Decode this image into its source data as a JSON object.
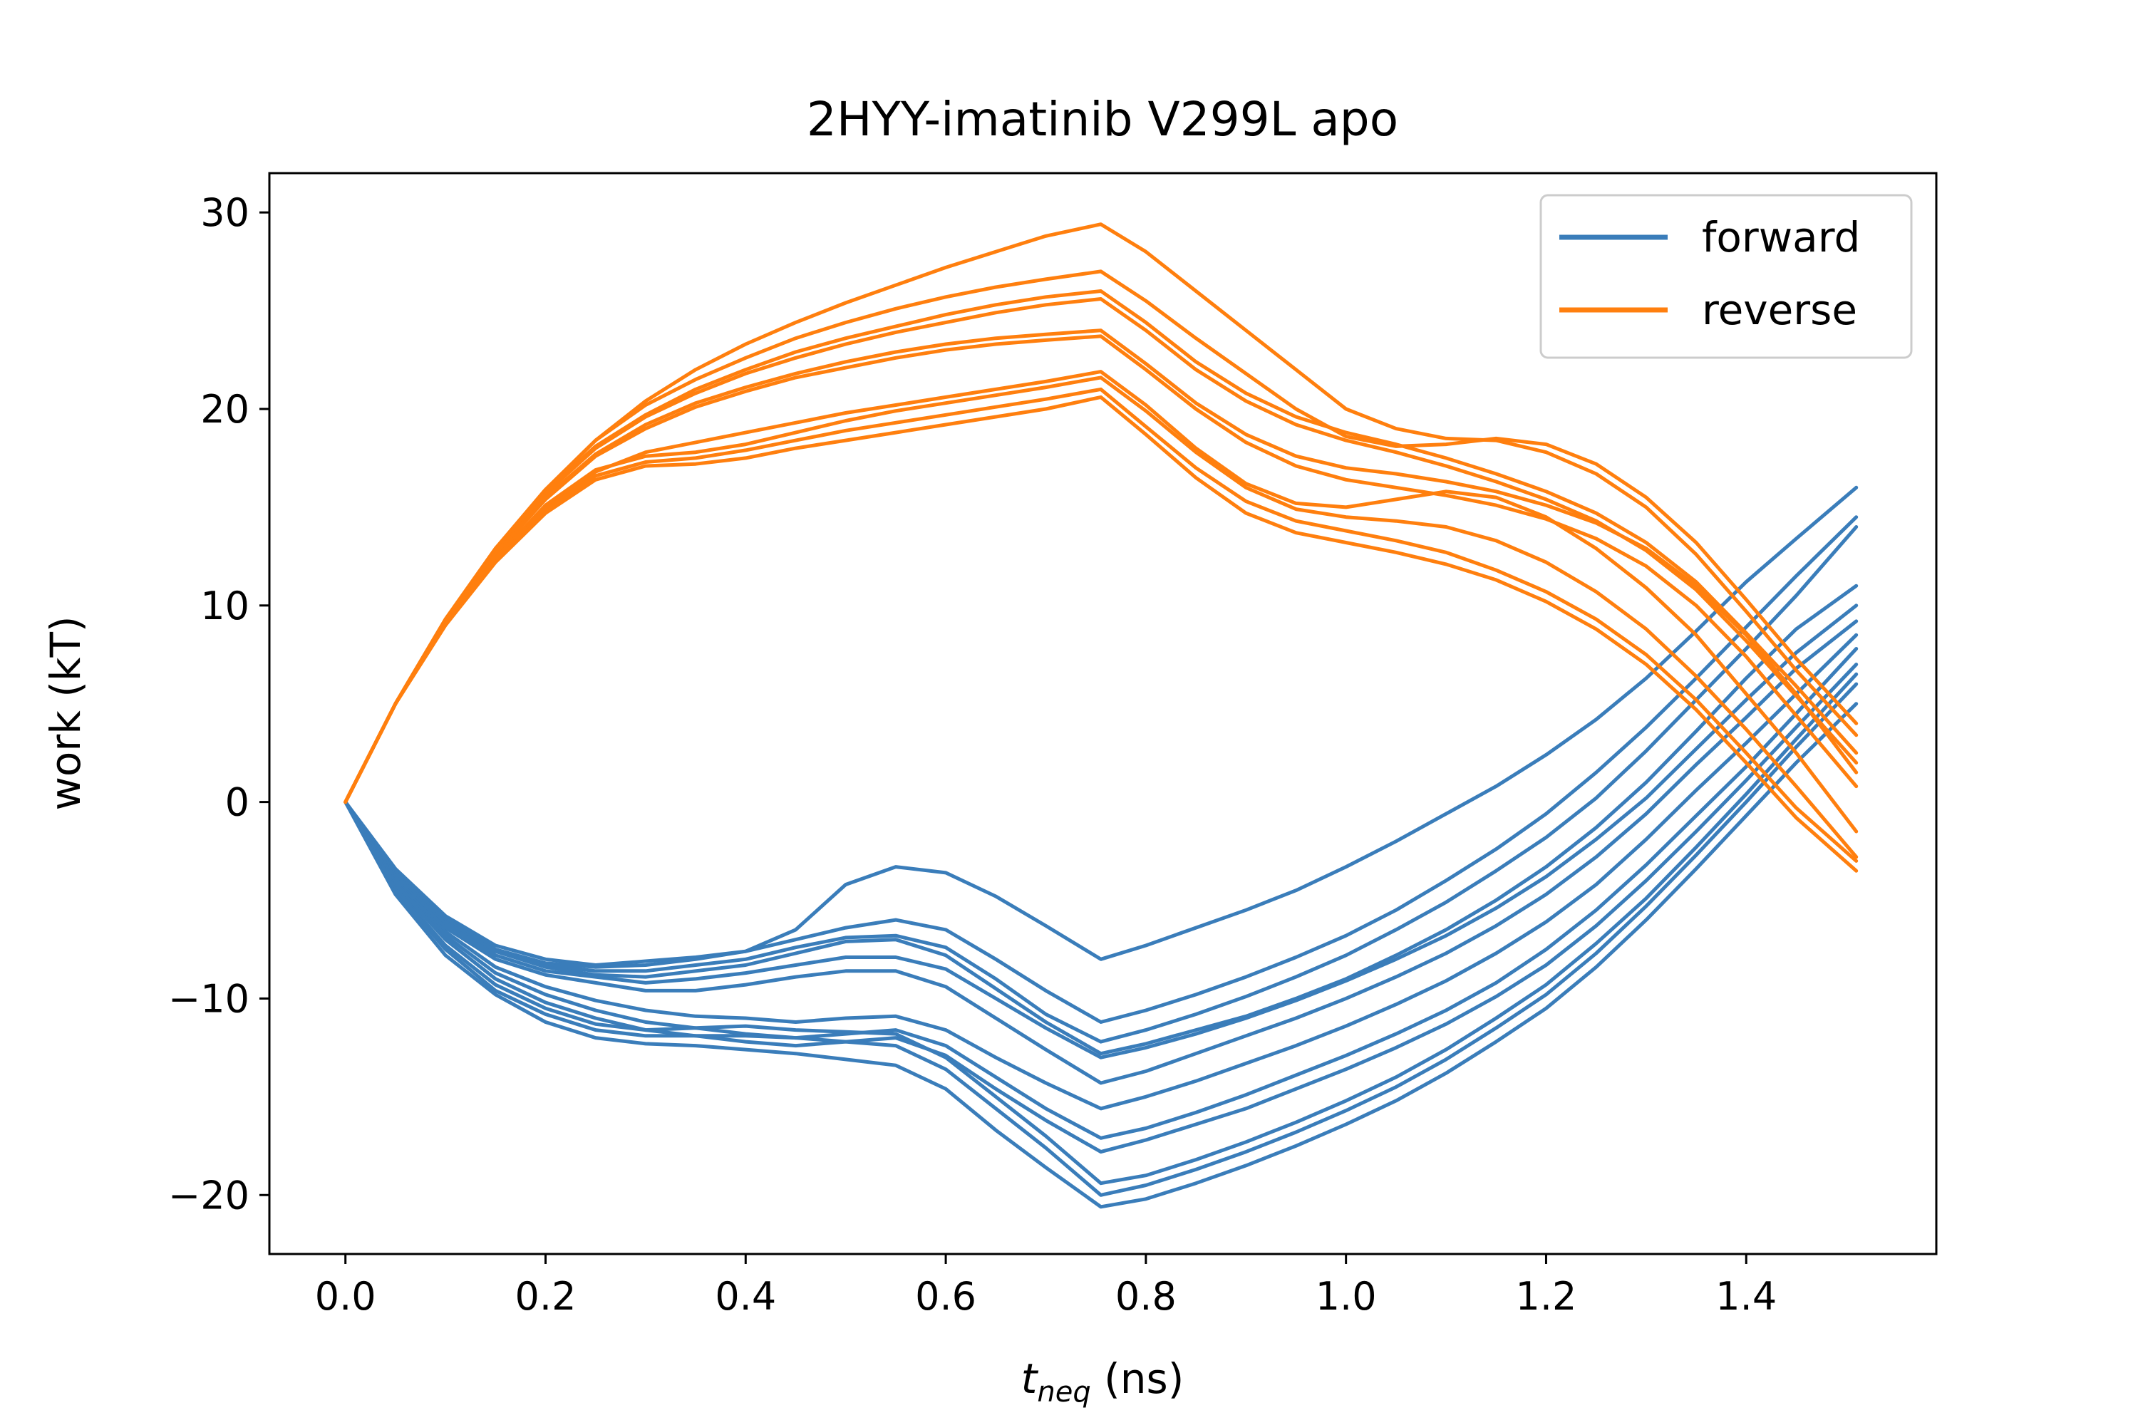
{
  "chart_data": {
    "type": "line",
    "title": "2HYY-imatinib V299L apo",
    "xlabel": {
      "base": "t",
      "subscript": "neq",
      "suffix": " (ns)"
    },
    "ylabel": "work (kT)",
    "xlim": [
      -0.076,
      1.59
    ],
    "ylim": [
      -23,
      32
    ],
    "xticks": [
      "0.0",
      "0.2",
      "0.4",
      "0.6",
      "0.8",
      "1.0",
      "1.2",
      "1.4"
    ],
    "yticks": [
      "−20",
      "−10",
      "0",
      "10",
      "20",
      "30"
    ],
    "xtick_values": [
      0,
      0.2,
      0.4,
      0.6,
      0.8,
      1.0,
      1.2,
      1.4
    ],
    "ytick_values": [
      -20,
      -10,
      0,
      10,
      20,
      30
    ],
    "grid": false,
    "legend": {
      "position": "top-right",
      "entries": [
        "forward",
        "reverse"
      ]
    },
    "colors": {
      "forward": "#3a7dba",
      "reverse": "#ff7f0e"
    },
    "x": [
      0,
      0.05,
      0.1,
      0.15,
      0.2,
      0.25,
      0.3,
      0.35,
      0.4,
      0.45,
      0.5,
      0.55,
      0.6,
      0.65,
      0.7,
      0.755,
      0.8,
      0.85,
      0.9,
      0.95,
      1.0,
      1.05,
      1.1,
      1.15,
      1.2,
      1.25,
      1.3,
      1.35,
      1.4,
      1.45,
      1.51
    ],
    "series": [
      {
        "name": "forward",
        "values": [
          0,
          -3.4,
          -5.8,
          -7.3,
          -8.0,
          -8.3,
          -8.1,
          -7.9,
          -7.6,
          -6.5,
          -4.2,
          -3.3,
          -3.6,
          -4.8,
          -6.3,
          -8.0,
          -7.3,
          -6.4,
          -5.5,
          -4.5,
          -3.3,
          -2.0,
          -0.6,
          0.8,
          2.4,
          4.2,
          6.3,
          8.7,
          11.2,
          13.4,
          16.0
        ]
      },
      {
        "name": "forward",
        "values": [
          0,
          -3.6,
          -6.0,
          -7.5,
          -8.2,
          -8.4,
          -8.3,
          -8.0,
          -7.6,
          -7.0,
          -6.4,
          -6.0,
          -6.5,
          -8.0,
          -9.6,
          -11.2,
          -10.6,
          -9.8,
          -8.9,
          -7.9,
          -6.8,
          -5.5,
          -4.0,
          -2.4,
          -0.6,
          1.5,
          3.8,
          6.3,
          8.9,
          11.5,
          14.5
        ]
      },
      {
        "name": "forward",
        "values": [
          0,
          -3.6,
          -6.0,
          -7.5,
          -8.3,
          -8.6,
          -8.6,
          -8.3,
          -8.0,
          -7.4,
          -6.9,
          -6.8,
          -7.4,
          -9.0,
          -10.8,
          -12.2,
          -11.6,
          -10.8,
          -9.9,
          -8.9,
          -7.8,
          -6.5,
          -5.1,
          -3.5,
          -1.8,
          0.2,
          2.6,
          5.2,
          7.8,
          10.5,
          14.0
        ]
      },
      {
        "name": "forward",
        "values": [
          0,
          -3.7,
          -6.1,
          -7.6,
          -8.4,
          -8.8,
          -8.9,
          -8.6,
          -8.3,
          -7.7,
          -7.1,
          -7.0,
          -7.8,
          -9.5,
          -11.2,
          -12.8,
          -12.3,
          -11.6,
          -10.9,
          -10.0,
          -9.0,
          -7.8,
          -6.5,
          -5.0,
          -3.3,
          -1.3,
          1.0,
          3.6,
          6.3,
          8.8,
          11.0
        ]
      },
      {
        "name": "forward",
        "values": [
          0,
          -3.8,
          -6.2,
          -7.8,
          -8.6,
          -8.9,
          -9.2,
          -9.0,
          -8.7,
          -8.3,
          -7.9,
          -7.9,
          -8.5,
          -10.0,
          -11.5,
          -13.0,
          -12.5,
          -11.8,
          -11.0,
          -10.1,
          -9.1,
          -8.0,
          -6.8,
          -5.4,
          -3.8,
          -1.9,
          0.2,
          2.7,
          5.2,
          7.6,
          10.0
        ]
      },
      {
        "name": "forward",
        "values": [
          0,
          -3.9,
          -6.4,
          -8.0,
          -8.8,
          -9.2,
          -9.6,
          -9.6,
          -9.3,
          -8.9,
          -8.6,
          -8.6,
          -9.4,
          -11.0,
          -12.6,
          -14.3,
          -13.7,
          -12.8,
          -11.9,
          -11.0,
          -10.0,
          -8.9,
          -7.7,
          -6.3,
          -4.7,
          -2.8,
          -0.6,
          1.9,
          4.3,
          6.8,
          9.2
        ]
      },
      {
        "name": "forward",
        "values": [
          0,
          -4.0,
          -6.6,
          -8.4,
          -9.4,
          -10.1,
          -10.6,
          -10.9,
          -11.0,
          -11.2,
          -11.0,
          -10.9,
          -11.6,
          -13.0,
          -14.3,
          -15.6,
          -15.0,
          -14.2,
          -13.3,
          -12.4,
          -11.4,
          -10.3,
          -9.1,
          -7.7,
          -6.1,
          -4.2,
          -1.9,
          0.6,
          3.0,
          5.5,
          8.5
        ]
      },
      {
        "name": "forward",
        "values": [
          0,
          -4.1,
          -6.8,
          -8.7,
          -9.8,
          -10.6,
          -11.2,
          -11.5,
          -11.8,
          -12.0,
          -11.8,
          -11.6,
          -12.4,
          -14.0,
          -15.6,
          -17.1,
          -16.6,
          -15.8,
          -14.9,
          -13.9,
          -12.9,
          -11.8,
          -10.6,
          -9.2,
          -7.5,
          -5.5,
          -3.2,
          -0.7,
          1.8,
          4.5,
          7.8
        ]
      },
      {
        "name": "forward",
        "values": [
          0,
          -4.2,
          -7.0,
          -9.0,
          -10.2,
          -11.0,
          -11.6,
          -11.9,
          -12.2,
          -12.4,
          -12.2,
          -12.0,
          -12.9,
          -14.6,
          -16.2,
          -17.8,
          -17.2,
          -16.4,
          -15.6,
          -14.6,
          -13.6,
          -12.5,
          -11.3,
          -9.9,
          -8.3,
          -6.3,
          -4.0,
          -1.5,
          1.1,
          3.8,
          7.0
        ]
      },
      {
        "name": "forward",
        "values": [
          0,
          -4.4,
          -7.3,
          -9.3,
          -10.5,
          -11.3,
          -11.6,
          -11.5,
          -11.4,
          -11.6,
          -11.7,
          -11.8,
          -13.0,
          -15.0,
          -17.0,
          -19.4,
          -19.0,
          -18.2,
          -17.3,
          -16.3,
          -15.2,
          -14.0,
          -12.6,
          -11.0,
          -9.3,
          -7.2,
          -4.9,
          -2.3,
          0.4,
          3.2,
          6.5
        ]
      },
      {
        "name": "forward",
        "values": [
          0,
          -4.5,
          -7.5,
          -9.6,
          -10.8,
          -11.6,
          -11.9,
          -11.9,
          -11.9,
          -12.0,
          -12.2,
          -12.4,
          -13.6,
          -15.6,
          -17.6,
          -20.0,
          -19.5,
          -18.7,
          -17.8,
          -16.8,
          -15.7,
          -14.5,
          -13.1,
          -11.5,
          -9.8,
          -7.7,
          -5.3,
          -2.7,
          0.0,
          2.8,
          6.0
        ]
      },
      {
        "name": "forward",
        "values": [
          0,
          -4.7,
          -7.8,
          -9.8,
          -11.2,
          -12.0,
          -12.3,
          -12.4,
          -12.6,
          -12.8,
          -13.1,
          -13.4,
          -14.6,
          -16.7,
          -18.6,
          -20.6,
          -20.2,
          -19.4,
          -18.5,
          -17.5,
          -16.4,
          -15.2,
          -13.8,
          -12.2,
          -10.5,
          -8.4,
          -6.0,
          -3.4,
          -0.7,
          2.0,
          5.0
        ]
      },
      {
        "name": "reverse",
        "values": [
          0,
          5.0,
          9.3,
          12.9,
          15.9,
          18.4,
          20.4,
          22.0,
          23.3,
          24.4,
          25.4,
          26.3,
          27.2,
          28.0,
          28.8,
          29.4,
          28.0,
          26.0,
          24.0,
          22.0,
          20.0,
          19.0,
          18.5,
          18.4,
          17.8,
          16.7,
          15.0,
          12.6,
          9.7,
          6.7,
          3.4
        ]
      },
      {
        "name": "reverse",
        "values": [
          0,
          5.0,
          9.3,
          12.9,
          15.9,
          18.4,
          20.2,
          21.5,
          22.6,
          23.6,
          24.4,
          25.1,
          25.7,
          26.2,
          26.6,
          27.0,
          25.5,
          23.6,
          21.8,
          20.0,
          18.6,
          18.1,
          18.2,
          18.5,
          18.2,
          17.2,
          15.5,
          13.2,
          10.3,
          7.3,
          4.0
        ]
      },
      {
        "name": "reverse",
        "values": [
          0,
          5.0,
          9.3,
          12.9,
          15.8,
          18.1,
          19.7,
          21.0,
          22.0,
          22.9,
          23.6,
          24.2,
          24.8,
          25.3,
          25.7,
          26.0,
          24.4,
          22.4,
          20.8,
          19.6,
          18.8,
          18.2,
          17.5,
          16.7,
          15.8,
          14.7,
          13.2,
          11.2,
          8.6,
          5.9,
          2.5
        ]
      },
      {
        "name": "reverse",
        "values": [
          0,
          5.0,
          9.3,
          12.8,
          15.7,
          18.0,
          19.6,
          20.8,
          21.8,
          22.6,
          23.3,
          23.9,
          24.4,
          24.9,
          25.3,
          25.6,
          24.0,
          22.0,
          20.4,
          19.2,
          18.4,
          17.8,
          17.1,
          16.3,
          15.4,
          14.3,
          12.8,
          10.8,
          8.2,
          5.4,
          2.0
        ]
      },
      {
        "name": "reverse",
        "values": [
          0,
          5.0,
          9.2,
          12.7,
          15.5,
          17.7,
          19.2,
          20.3,
          21.1,
          21.8,
          22.4,
          22.9,
          23.3,
          23.6,
          23.8,
          24.0,
          22.3,
          20.3,
          18.7,
          17.6,
          17.0,
          16.7,
          16.3,
          15.8,
          15.1,
          14.2,
          12.9,
          11.0,
          8.5,
          5.5,
          1.5
        ]
      },
      {
        "name": "reverse",
        "values": [
          0,
          5.0,
          9.2,
          12.6,
          15.4,
          17.6,
          19.0,
          20.1,
          20.9,
          21.6,
          22.1,
          22.6,
          23.0,
          23.3,
          23.5,
          23.7,
          22.0,
          20.0,
          18.3,
          17.1,
          16.4,
          16.0,
          15.6,
          15.1,
          14.4,
          13.4,
          12.0,
          10.0,
          7.4,
          4.4,
          0.8
        ]
      },
      {
        "name": "reverse",
        "values": [
          0,
          5.0,
          9.1,
          12.4,
          15.0,
          16.8,
          17.8,
          18.3,
          18.8,
          19.3,
          19.8,
          20.2,
          20.6,
          21.0,
          21.4,
          21.9,
          20.2,
          18.0,
          16.2,
          15.2,
          15.0,
          15.4,
          15.8,
          15.5,
          14.5,
          12.9,
          10.9,
          8.5,
          5.5,
          2.5,
          -1.5
        ]
      },
      {
        "name": "reverse",
        "values": [
          0,
          5.0,
          9.1,
          12.4,
          15.1,
          16.9,
          17.6,
          17.8,
          18.2,
          18.8,
          19.4,
          19.9,
          20.3,
          20.7,
          21.1,
          21.6,
          19.9,
          17.8,
          16.0,
          14.9,
          14.5,
          14.3,
          14.0,
          13.3,
          12.2,
          10.7,
          8.8,
          6.4,
          3.7,
          0.8,
          -2.8
        ]
      },
      {
        "name": "reverse",
        "values": [
          0,
          5.0,
          9.0,
          12.3,
          14.9,
          16.6,
          17.3,
          17.5,
          17.9,
          18.4,
          18.9,
          19.3,
          19.7,
          20.1,
          20.5,
          21.0,
          19.1,
          17.0,
          15.3,
          14.3,
          13.8,
          13.3,
          12.7,
          11.8,
          10.7,
          9.3,
          7.5,
          5.2,
          2.5,
          -0.3,
          -3.0
        ]
      },
      {
        "name": "reverse",
        "values": [
          0,
          5.0,
          9.0,
          12.2,
          14.7,
          16.4,
          17.1,
          17.2,
          17.5,
          18.0,
          18.4,
          18.8,
          19.2,
          19.6,
          20.0,
          20.6,
          18.7,
          16.5,
          14.7,
          13.7,
          13.2,
          12.7,
          12.1,
          11.3,
          10.2,
          8.8,
          7.0,
          4.7,
          2.0,
          -0.8,
          -3.5
        ]
      }
    ]
  }
}
